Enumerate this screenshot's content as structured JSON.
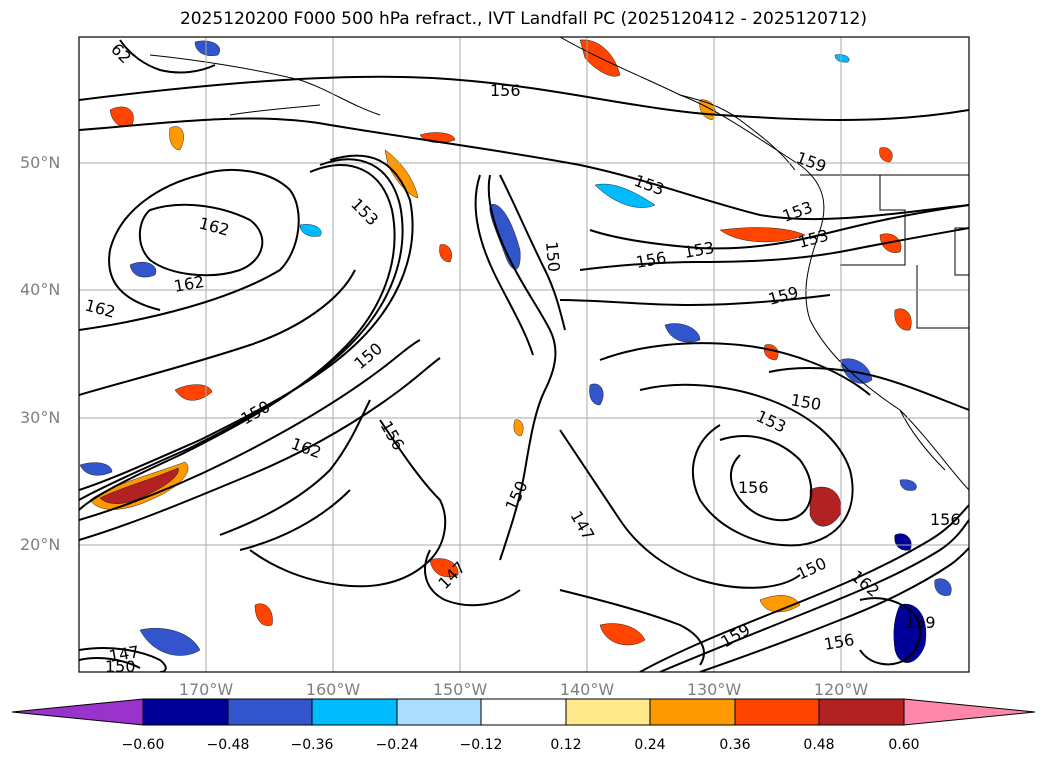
{
  "title": "2025120200 F000 500 hPa refract., IVT Landfall PC (2025120412 - 2025120712)",
  "axes": {
    "latitude_labels": [
      "50°N",
      "40°N",
      "30°N",
      "20°N"
    ],
    "longitude_labels": [
      "170°W",
      "160°W",
      "150°W",
      "140°W",
      "130°W",
      "120°W"
    ]
  },
  "contour_labels": [
    "62",
    "156",
    "159",
    "153",
    "153",
    "153",
    "150",
    "156",
    "153",
    "162",
    "162",
    "162",
    "159",
    "153",
    "150",
    "153",
    "150",
    "162",
    "150",
    "156",
    "150",
    "147",
    "147",
    "150",
    "156",
    "162",
    "159",
    "159",
    "156",
    "156",
    "147",
    "150"
  ],
  "colorbar": {
    "ticks": [
      "−0.60",
      "−0.48",
      "−0.36",
      "−0.24",
      "−0.12",
      "0.12",
      "0.24",
      "0.36",
      "0.48",
      "0.60"
    ],
    "colors": [
      "#9933cc",
      "#000099",
      "#3355cc",
      "#00bbff",
      "#aaddff",
      "#ffffff",
      "#ffe98a",
      "#ff9900",
      "#ff4400",
      "#b22222",
      "#ff88aa"
    ]
  }
}
